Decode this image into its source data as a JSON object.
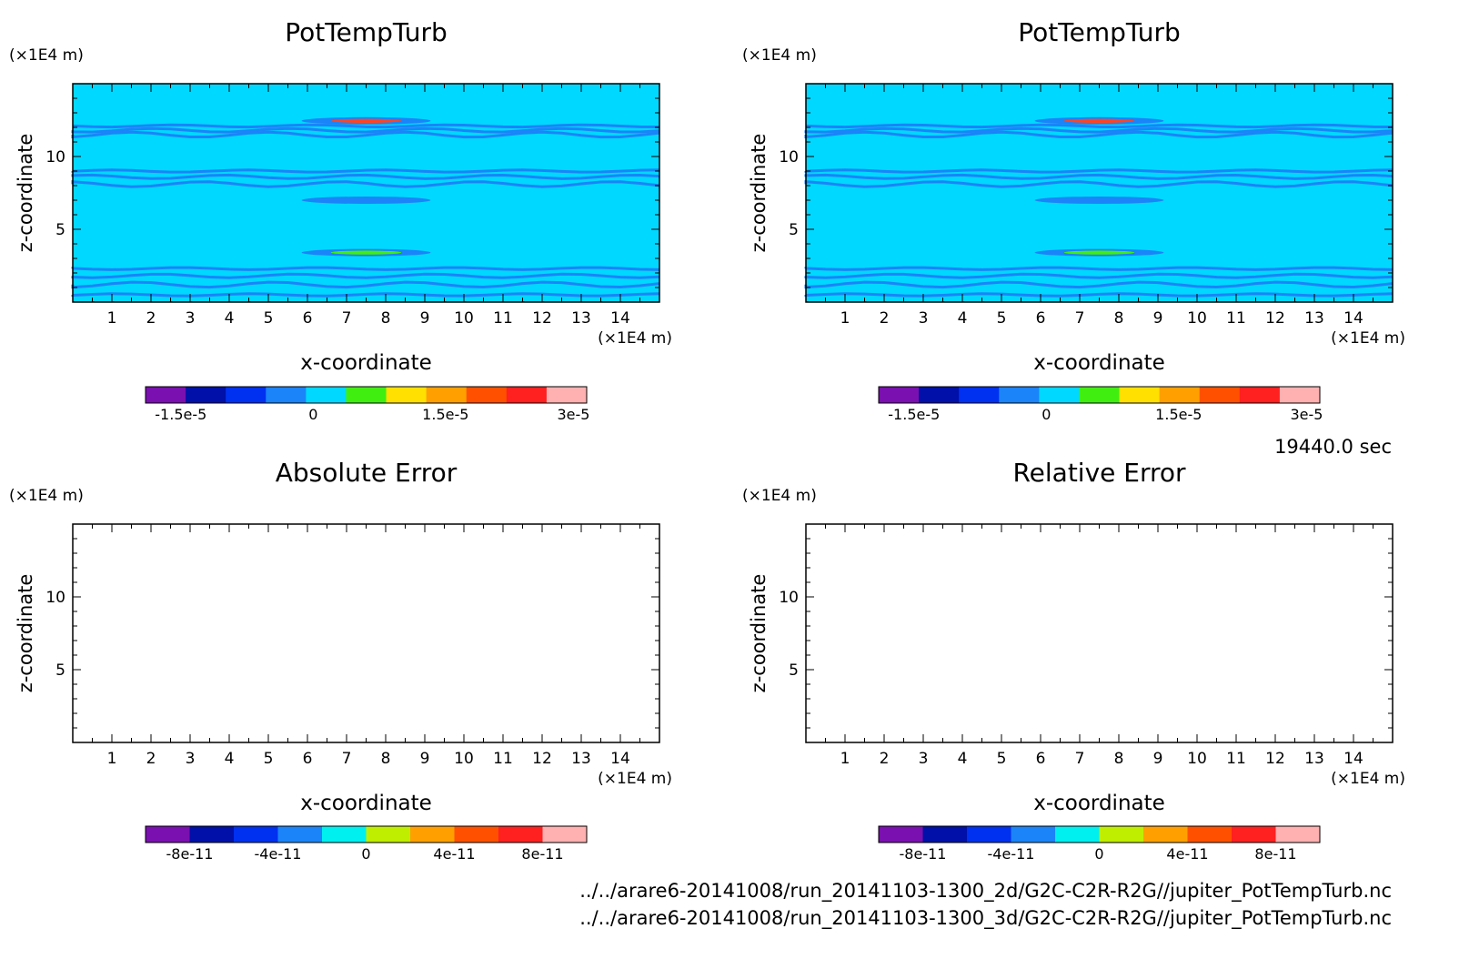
{
  "figure": {
    "time_label": "19440.0 sec",
    "files": [
      "../../arare6-20141008/run_20141103-1300_2d/G2C-C2R-R2G//jupiter_PotTempTurb.nc",
      "../../arare6-20141008/run_20141103-1300_3d/G2C-C2R-R2G//jupiter_PotTempTurb.nc"
    ]
  },
  "chart_data": [
    {
      "type": "heatmap",
      "title": "PotTempTurb",
      "xlabel": "x-coordinate",
      "ylabel": "z-coordinate",
      "x_unit": "(×1E4 m)",
      "y_unit": "(×1E4 m)",
      "xlim": [
        0,
        15
      ],
      "ylim": [
        0,
        15
      ],
      "x_ticks": [
        "1",
        "2",
        "3",
        "4",
        "5",
        "6",
        "7",
        "8",
        "9",
        "10",
        "11",
        "12",
        "13",
        "14"
      ],
      "y_ticks": [
        "5",
        "10"
      ],
      "background": "#00d8ff",
      "layers": [
        {
          "z": 12.1,
          "color": "#1a84f8"
        },
        {
          "z": 11.8,
          "color": "#1a84f8"
        },
        {
          "z": 11.5,
          "color": "#1a84f8"
        },
        {
          "z": 9.0,
          "color": "#1a84f8"
        },
        {
          "z": 8.6,
          "color": "#1a84f8"
        },
        {
          "z": 8.1,
          "color": "#1a84f8"
        },
        {
          "z": 2.3,
          "color": "#1a84f8"
        },
        {
          "z": 1.8,
          "color": "#1a84f8"
        },
        {
          "z": 1.2,
          "color": "#1a84f8"
        },
        {
          "z": 0.5,
          "color": "#1a84f8"
        }
      ],
      "features": [
        {
          "x": 7.5,
          "z": 12.45,
          "color": "#ff4422"
        },
        {
          "x": 7.5,
          "z": 3.4,
          "color": "#40ee10"
        },
        {
          "x": 7.5,
          "z": 7.0,
          "color": "#1a84f8"
        }
      ],
      "colorbar": {
        "colors": [
          "#7a10b0",
          "#0010a8",
          "#0030f0",
          "#1a84f8",
          "#00d8ff",
          "#40ee10",
          "#ffe000",
          "#ffa000",
          "#ff5000",
          "#ff2020",
          "#ffb0b0"
        ],
        "tick_labels": [
          "-1.5e-5",
          "0",
          "1.5e-5",
          "3e-5"
        ]
      }
    },
    {
      "type": "heatmap",
      "title": "PotTempTurb",
      "xlabel": "x-coordinate",
      "ylabel": "z-coordinate",
      "x_unit": "(×1E4 m)",
      "y_unit": "(×1E4 m)",
      "xlim": [
        0,
        15
      ],
      "ylim": [
        0,
        15
      ],
      "x_ticks": [
        "1",
        "2",
        "3",
        "4",
        "5",
        "6",
        "7",
        "8",
        "9",
        "10",
        "11",
        "12",
        "13",
        "14"
      ],
      "y_ticks": [
        "5",
        "10"
      ],
      "background": "#00d8ff",
      "layers": [
        {
          "z": 12.1,
          "color": "#1a84f8"
        },
        {
          "z": 11.8,
          "color": "#1a84f8"
        },
        {
          "z": 11.5,
          "color": "#1a84f8"
        },
        {
          "z": 9.0,
          "color": "#1a84f8"
        },
        {
          "z": 8.6,
          "color": "#1a84f8"
        },
        {
          "z": 8.1,
          "color": "#1a84f8"
        },
        {
          "z": 2.3,
          "color": "#1a84f8"
        },
        {
          "z": 1.8,
          "color": "#1a84f8"
        },
        {
          "z": 1.2,
          "color": "#1a84f8"
        },
        {
          "z": 0.5,
          "color": "#1a84f8"
        }
      ],
      "features": [
        {
          "x": 7.5,
          "z": 12.45,
          "color": "#ff4422"
        },
        {
          "x": 7.5,
          "z": 3.4,
          "color": "#40ee10"
        },
        {
          "x": 7.5,
          "z": 7.0,
          "color": "#1a84f8"
        }
      ],
      "colorbar": {
        "colors": [
          "#7a10b0",
          "#0010a8",
          "#0030f0",
          "#1a84f8",
          "#00d8ff",
          "#40ee10",
          "#ffe000",
          "#ffa000",
          "#ff5000",
          "#ff2020",
          "#ffb0b0"
        ],
        "tick_labels": [
          "-1.5e-5",
          "0",
          "1.5e-5",
          "3e-5"
        ]
      }
    },
    {
      "type": "heatmap",
      "title": "Absolute Error",
      "xlabel": "x-coordinate",
      "ylabel": "z-coordinate",
      "x_unit": "(×1E4 m)",
      "y_unit": "(×1E4 m)",
      "xlim": [
        0,
        15
      ],
      "ylim": [
        0,
        15
      ],
      "x_ticks": [
        "1",
        "2",
        "3",
        "4",
        "5",
        "6",
        "7",
        "8",
        "9",
        "10",
        "11",
        "12",
        "13",
        "14"
      ],
      "y_ticks": [
        "5",
        "10"
      ],
      "background": "#ffffff",
      "layers": [],
      "features": [],
      "colorbar": {
        "colors": [
          "#7a10b0",
          "#0010a8",
          "#0030f0",
          "#1a84f8",
          "#00f0f0",
          "#c0ee00",
          "#ffa000",
          "#ff5000",
          "#ff2020",
          "#ffb0b0"
        ],
        "tick_labels": [
          "-8e-11",
          "-4e-11",
          "0",
          "4e-11",
          "8e-11"
        ]
      }
    },
    {
      "type": "heatmap",
      "title": "Relative Error",
      "xlabel": "x-coordinate",
      "ylabel": "z-coordinate",
      "x_unit": "(×1E4 m)",
      "y_unit": "(×1E4 m)",
      "xlim": [
        0,
        15
      ],
      "ylim": [
        0,
        15
      ],
      "x_ticks": [
        "1",
        "2",
        "3",
        "4",
        "5",
        "6",
        "7",
        "8",
        "9",
        "10",
        "11",
        "12",
        "13",
        "14"
      ],
      "y_ticks": [
        "5",
        "10"
      ],
      "background": "#ffffff",
      "layers": [],
      "features": [],
      "colorbar": {
        "colors": [
          "#7a10b0",
          "#0010a8",
          "#0030f0",
          "#1a84f8",
          "#00f0f0",
          "#c0ee00",
          "#ffa000",
          "#ff5000",
          "#ff2020",
          "#ffb0b0"
        ],
        "tick_labels": [
          "-8e-11",
          "-4e-11",
          "0",
          "4e-11",
          "8e-11"
        ]
      }
    }
  ]
}
